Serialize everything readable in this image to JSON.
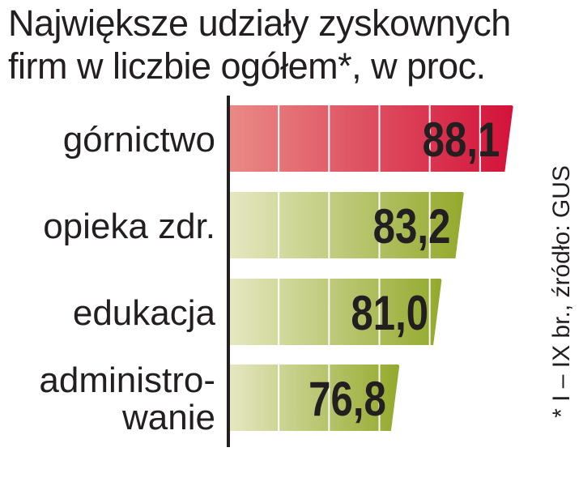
{
  "chart_data": {
    "type": "bar",
    "orientation": "horizontal",
    "title_lines": [
      "Największe udziały zyskownych",
      "firm w liczbie ogółem*, w proc."
    ],
    "categories": [
      [
        "górnictwo"
      ],
      [
        "opieka zdr."
      ],
      [
        "edukacja"
      ],
      [
        "administro-",
        "wanie"
      ]
    ],
    "values": [
      88.1,
      83.2,
      81.0,
      76.8
    ],
    "value_labels": [
      "88,1",
      "83,2",
      "81,0",
      "76,8"
    ],
    "highlight": [
      true,
      false,
      false,
      false
    ],
    "xlim": [
      60,
      90
    ],
    "gridlines": [
      65,
      70,
      75,
      80,
      85
    ],
    "footnote": "* I – IX br., źródło: GUS",
    "colors": {
      "highlight_start": "#e98a86",
      "highlight_end": "#d3123a",
      "bar_start": "#e6e8c2",
      "bar_end": "#93a92c",
      "grid": "#ffffff",
      "axis": "#231f20",
      "text": "#231f20"
    }
  }
}
